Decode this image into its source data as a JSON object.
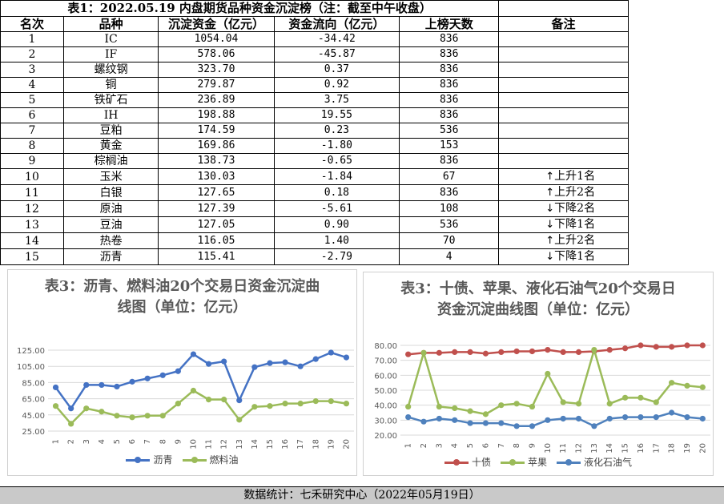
{
  "table": {
    "title": "表1：2022.05.19 内盘期货品种资金沉淀榜（注：截至中午收盘）",
    "headers": [
      "名次",
      "品种",
      "沉淀资金（亿元）",
      "资金流向（亿元）",
      "上榜天数",
      "备注"
    ],
    "rows": [
      {
        "rank": "1",
        "name": "IC",
        "capital": "1054.04",
        "flow": "-34.42",
        "days": "836",
        "note": ""
      },
      {
        "rank": "2",
        "name": "IF",
        "capital": "578.06",
        "flow": "-45.87",
        "days": "836",
        "note": ""
      },
      {
        "rank": "3",
        "name": "螺纹钢",
        "capital": "323.70",
        "flow": "0.37",
        "days": "836",
        "note": ""
      },
      {
        "rank": "4",
        "name": "铜",
        "capital": "279.87",
        "flow": "0.92",
        "days": "836",
        "note": ""
      },
      {
        "rank": "5",
        "name": "铁矿石",
        "capital": "236.89",
        "flow": "3.75",
        "days": "836",
        "note": ""
      },
      {
        "rank": "6",
        "name": "IH",
        "capital": "198.88",
        "flow": "19.55",
        "days": "836",
        "note": ""
      },
      {
        "rank": "7",
        "name": "豆粕",
        "capital": "174.59",
        "flow": "0.23",
        "days": "536",
        "note": ""
      },
      {
        "rank": "8",
        "name": "黄金",
        "capital": "169.86",
        "flow": "-1.80",
        "days": "153",
        "note": ""
      },
      {
        "rank": "9",
        "name": "棕榈油",
        "capital": "138.73",
        "flow": "-0.65",
        "days": "836",
        "note": ""
      },
      {
        "rank": "10",
        "name": "玉米",
        "capital": "130.03",
        "flow": "-1.84",
        "days": "67",
        "note": "上升1名",
        "dir": "↑"
      },
      {
        "rank": "11",
        "name": "白银",
        "capital": "127.65",
        "flow": "0.18",
        "days": "836",
        "note": "上升2名",
        "dir": "↑"
      },
      {
        "rank": "12",
        "name": "原油",
        "capital": "127.39",
        "flow": "-5.61",
        "days": "108",
        "note": "下降2名",
        "dir": "↓"
      },
      {
        "rank": "13",
        "name": "豆油",
        "capital": "127.05",
        "flow": "0.90",
        "days": "536",
        "note": "下降1名",
        "dir": "↓"
      },
      {
        "rank": "14",
        "name": "热卷",
        "capital": "116.05",
        "flow": "1.40",
        "days": "70",
        "note": "上升2名",
        "dir": "↑"
      },
      {
        "rank": "15",
        "name": "沥青",
        "capital": "115.41",
        "flow": "-2.79",
        "days": "4",
        "note": "下降1名",
        "dir": "↓"
      }
    ]
  },
  "footer": "数据统计：七禾研究中心（2022年05月19日）",
  "chart_data": [
    {
      "type": "line",
      "title": "表3：沥青、燃料油20个交易日资金沉淀曲线图（单位：亿元）",
      "x": [
        1,
        2,
        3,
        4,
        5,
        6,
        7,
        8,
        9,
        10,
        11,
        12,
        13,
        14,
        15,
        16,
        17,
        18,
        19,
        20
      ],
      "ylim": [
        25,
        125
      ],
      "yticks": [
        "25.00",
        "45.00",
        "65.00",
        "85.00",
        "105.00",
        "125.00"
      ],
      "grid": true,
      "legend": "bottom",
      "series": [
        {
          "name": "沥青",
          "color": "#4472c4",
          "values": [
            79,
            53,
            82,
            82,
            80,
            86,
            90,
            94,
            99,
            120,
            108,
            111,
            63,
            104,
            109,
            110,
            105,
            114,
            122,
            116
          ]
        },
        {
          "name": "燃料油",
          "color": "#9bbb59",
          "values": [
            56,
            34,
            53,
            49,
            44,
            42,
            44,
            44,
            59,
            75,
            64,
            64,
            39,
            55,
            56,
            59,
            59,
            62,
            62,
            59
          ]
        }
      ]
    },
    {
      "type": "line",
      "title": "表3：十债、苹果、液化石油气20个交易日资金沉淀曲线图（单位：亿元）",
      "x": [
        1,
        2,
        3,
        4,
        5,
        6,
        7,
        8,
        9,
        10,
        11,
        12,
        13,
        14,
        15,
        16,
        17,
        18,
        19,
        20
      ],
      "ylim": [
        20,
        80
      ],
      "yticks": [
        "20.00",
        "30.00",
        "40.00",
        "50.00",
        "60.00",
        "70.00",
        "80.00"
      ],
      "grid": true,
      "legend": "bottom",
      "series": [
        {
          "name": "十债",
          "color": "#c0504d",
          "values": [
            74,
            75,
            75,
            75.5,
            75.5,
            74.5,
            75.5,
            76,
            76,
            77,
            75.5,
            75.5,
            76,
            77,
            78,
            80,
            79,
            79,
            80,
            80
          ]
        },
        {
          "name": "苹果",
          "color": "#9bbb59",
          "values": [
            39,
            75,
            39,
            38,
            36,
            34,
            40,
            41,
            39,
            61,
            42,
            41,
            77,
            41,
            45,
            45,
            42,
            55,
            53,
            52
          ]
        },
        {
          "name": "液化石油气",
          "color": "#4f81bd",
          "values": [
            32,
            29,
            31,
            30,
            28,
            28,
            28,
            26,
            26,
            30,
            31,
            31,
            26,
            31,
            32,
            32,
            32,
            35,
            32,
            31
          ]
        }
      ]
    }
  ]
}
